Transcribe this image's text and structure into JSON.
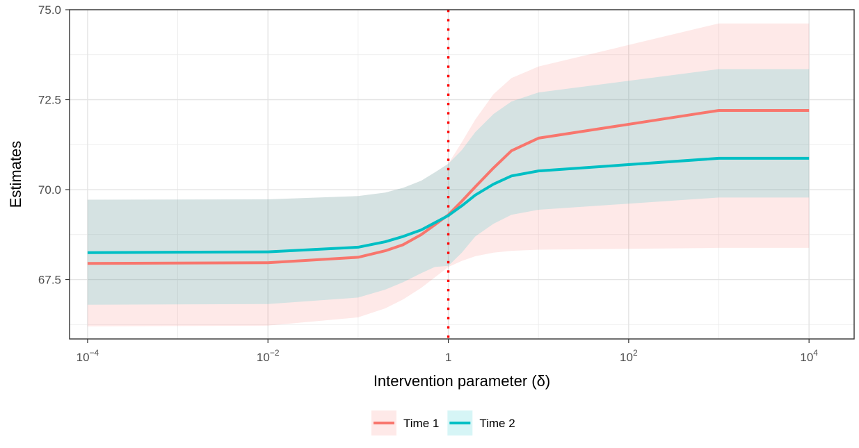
{
  "chart_data": {
    "type": "line",
    "xlabel": "Intervention parameter (δ)",
    "ylabel": "Estimates",
    "x_scale": "log10",
    "xlim": [
      -4.2,
      4.5
    ],
    "ylim": [
      65.85,
      75.0
    ],
    "x_ticks": [
      {
        "value": -4,
        "base": "10",
        "exp": "−4"
      },
      {
        "value": -2,
        "base": "10",
        "exp": "−2"
      },
      {
        "value": 0,
        "base": "1",
        "exp": ""
      },
      {
        "value": 2,
        "base": "10",
        "exp": "2"
      },
      {
        "value": 4,
        "base": "10",
        "exp": "4"
      }
    ],
    "y_ticks": [
      {
        "value": 67.5,
        "label": "67.5"
      },
      {
        "value": 70.0,
        "label": "70.0"
      },
      {
        "value": 72.5,
        "label": "72.5"
      },
      {
        "value": 75.0,
        "label": "75.0"
      }
    ],
    "grid": true,
    "reference_line": {
      "x": 0,
      "color": "#ff0000",
      "style": "dotted"
    },
    "legend_position": "bottom",
    "series": [
      {
        "name": "Time 1",
        "color": "#f8766d",
        "x": [
          -4,
          -2,
          -1,
          -0.7,
          -0.5,
          -0.3,
          -0.15,
          0,
          0.15,
          0.3,
          0.5,
          0.7,
          1,
          3,
          4
        ],
        "y": [
          67.95,
          67.97,
          68.12,
          68.3,
          68.47,
          68.75,
          69.02,
          69.3,
          69.68,
          70.08,
          70.6,
          71.08,
          71.43,
          72.2,
          72.2
        ],
        "lower": [
          66.2,
          66.22,
          66.45,
          66.7,
          66.95,
          67.27,
          67.56,
          67.85,
          68.02,
          68.15,
          68.25,
          68.3,
          68.33,
          68.38,
          68.38
        ],
        "upper": [
          69.72,
          69.73,
          69.82,
          69.92,
          70.05,
          70.25,
          70.48,
          70.72,
          71.32,
          71.95,
          72.65,
          73.1,
          73.42,
          74.62,
          74.62
        ]
      },
      {
        "name": "Time 2",
        "color": "#00bfc4",
        "x": [
          -4,
          -2,
          -1,
          -0.7,
          -0.5,
          -0.3,
          -0.15,
          0,
          0.15,
          0.3,
          0.5,
          0.7,
          1,
          3,
          4
        ],
        "y": [
          68.25,
          68.27,
          68.4,
          68.55,
          68.7,
          68.88,
          69.08,
          69.28,
          69.55,
          69.85,
          70.15,
          70.38,
          70.52,
          70.87,
          70.87
        ],
        "lower": [
          66.8,
          66.82,
          67.0,
          67.22,
          67.43,
          67.68,
          67.85,
          67.88,
          68.25,
          68.7,
          69.05,
          69.3,
          69.44,
          69.78,
          69.78
        ],
        "upper": [
          69.72,
          69.73,
          69.82,
          69.92,
          70.05,
          70.25,
          70.48,
          70.72,
          71.1,
          71.6,
          72.1,
          72.45,
          72.7,
          73.35,
          73.35
        ]
      }
    ]
  }
}
